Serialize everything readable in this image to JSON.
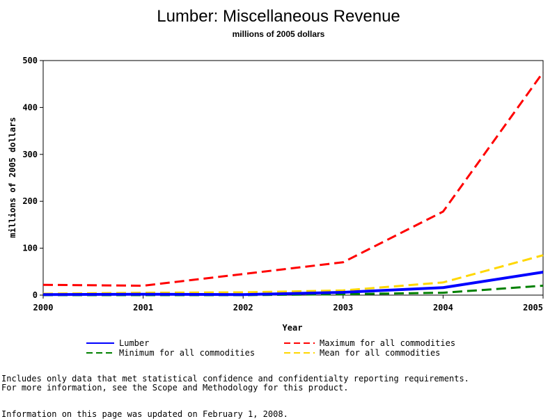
{
  "chart_data": {
    "type": "line",
    "title": "Lumber: Miscellaneous Revenue",
    "subtitle": "millions of 2005 dollars",
    "xlabel": "Year",
    "ylabel": "millions of 2005 dollars",
    "x": [
      2000,
      2001,
      2002,
      2003,
      2004,
      2005
    ],
    "xlim": [
      2000,
      2005
    ],
    "ylim": [
      0,
      500
    ],
    "x_ticks": [
      "2000",
      "2001",
      "2002",
      "2003",
      "2004",
      "2005"
    ],
    "y_ticks": [
      "0",
      "100",
      "200",
      "300",
      "400",
      "500"
    ],
    "series": [
      {
        "name": "Lumber",
        "color": "#0000ff",
        "style": "solid",
        "values": [
          1,
          2,
          1,
          6,
          16,
          49
        ]
      },
      {
        "name": "Maximum for all commodities",
        "color": "#ff0000",
        "style": "dashed",
        "values": [
          22,
          20,
          45,
          70,
          178,
          475
        ]
      },
      {
        "name": "Minimum for all commodities",
        "color": "#008000",
        "style": "dashed",
        "values": [
          0,
          0,
          0,
          2,
          5,
          20
        ]
      },
      {
        "name": "Mean for all commodities",
        "color": "#ffd700",
        "style": "dashed",
        "values": [
          3,
          5,
          6,
          10,
          27,
          85
        ]
      }
    ],
    "legend_position": "bottom"
  },
  "footnotes": {
    "line1": "Includes only data that met statistical confidence and confidentialty reporting requirements.",
    "line2": "For more information, see the Scope and Methodology for this product.",
    "line3": "Information on this page was updated on February 1, 2008."
  }
}
